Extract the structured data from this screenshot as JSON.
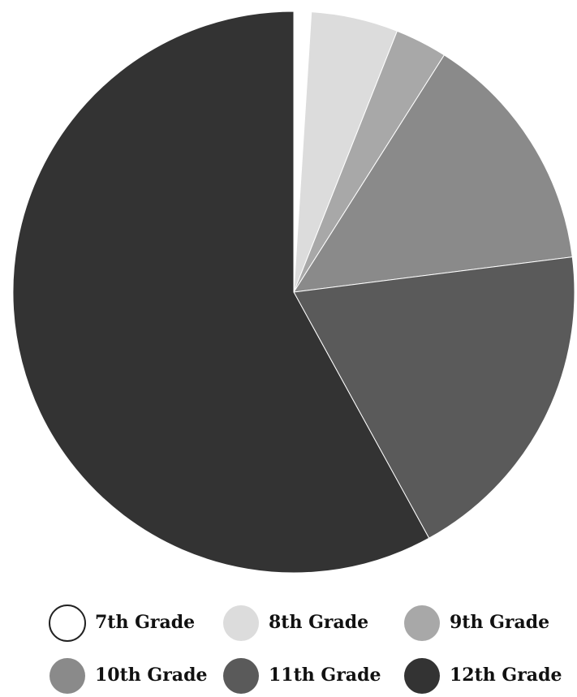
{
  "chart_data": {
    "type": "pie",
    "categories": [
      "7th Grade",
      "8th Grade",
      "9th Grade",
      "10th Grade",
      "11th Grade",
      "12th Grade"
    ],
    "values": [
      1,
      5,
      3,
      14,
      19,
      58
    ],
    "colors": [
      "#ffffff",
      "#dcdcdc",
      "#a8a8a8",
      "#8a8a8a",
      "#5a5a5a",
      "#333333"
    ]
  }
}
